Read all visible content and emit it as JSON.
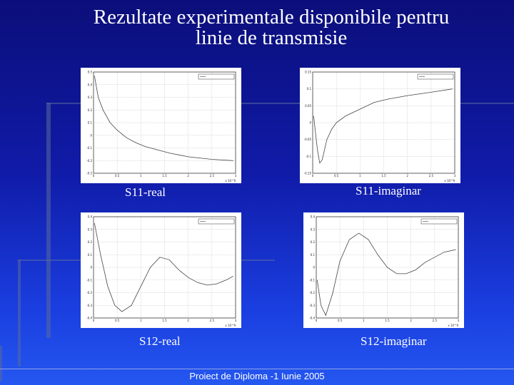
{
  "slide": {
    "title_line1": "Rezultate experimentale disponibile pentru",
    "title_line2": "linie de transmisie",
    "footer": "Proiect de Diploma -1 Iunie 2005"
  },
  "captions": {
    "s11_real": "S11-real",
    "s11_imag": "S11-imaginar",
    "s12_real": "S12-real",
    "s12_imag": "S12-imaginar"
  },
  "chart_data": [
    {
      "id": "s11_real",
      "type": "line",
      "x_ticks": [
        "0",
        "0.5",
        "1",
        "1.5",
        "2",
        "2.5",
        "3"
      ],
      "y_ticks": [
        "0.5",
        "0.4",
        "0.3",
        "0.2",
        "0.1",
        "0",
        "-0.1",
        "-0.2",
        "-0.3"
      ],
      "x_exponent": "x 10^9",
      "ylim": [
        -0.3,
        0.5
      ],
      "xlim": [
        0,
        3
      ],
      "grid": true,
      "legend_position": "top-right",
      "x": [
        0.02,
        0.1,
        0.2,
        0.35,
        0.5,
        0.7,
        0.9,
        1.1,
        1.3,
        1.6,
        2.0,
        2.5,
        2.95
      ],
      "values": [
        0.47,
        0.3,
        0.2,
        0.1,
        0.04,
        -0.02,
        -0.06,
        -0.09,
        -0.11,
        -0.14,
        -0.17,
        -0.19,
        -0.2
      ]
    },
    {
      "id": "s11_imag",
      "type": "line",
      "x_ticks": [
        "0",
        "0.5",
        "1",
        "1.5",
        "2",
        "2.5",
        "3"
      ],
      "y_ticks": [
        "0.15",
        "0.1",
        "0.05",
        "0",
        "-0.05",
        "-0.1",
        "-0.15"
      ],
      "x_exponent": "x 10^9",
      "ylim": [
        -0.15,
        0.15
      ],
      "xlim": [
        0,
        3
      ],
      "grid": true,
      "legend_position": "top-right",
      "x": [
        0.02,
        0.1,
        0.15,
        0.2,
        0.3,
        0.4,
        0.5,
        0.7,
        1.0,
        1.3,
        1.6,
        2.0,
        2.5,
        2.95
      ],
      "values": [
        0.02,
        -0.08,
        -0.12,
        -0.11,
        -0.05,
        -0.02,
        0.0,
        0.02,
        0.04,
        0.06,
        0.07,
        0.08,
        0.09,
        0.1
      ]
    },
    {
      "id": "s12_real",
      "type": "line",
      "x_ticks": [
        "0",
        "0.5",
        "1",
        "1.5",
        "2",
        "2.5",
        "3"
      ],
      "y_ticks": [
        "0.4",
        "0.3",
        "0.2",
        "0.1",
        "0",
        "-0.1",
        "-0.2",
        "-0.3",
        "-0.4"
      ],
      "x_exponent": "x 10^9",
      "ylim": [
        -0.4,
        0.4
      ],
      "xlim": [
        0,
        3
      ],
      "grid": true,
      "legend_position": "top-right",
      "x": [
        0.02,
        0.15,
        0.3,
        0.45,
        0.6,
        0.8,
        1.0,
        1.2,
        1.4,
        1.6,
        1.8,
        2.0,
        2.2,
        2.4,
        2.6,
        2.8,
        2.95
      ],
      "values": [
        0.35,
        0.1,
        -0.15,
        -0.3,
        -0.35,
        -0.3,
        -0.15,
        0.0,
        0.08,
        0.06,
        -0.02,
        -0.08,
        -0.12,
        -0.14,
        -0.13,
        -0.1,
        -0.07
      ]
    },
    {
      "id": "s12_imag",
      "type": "line",
      "x_ticks": [
        "0",
        "0.5",
        "1",
        "1.5",
        "2",
        "2.5",
        "3"
      ],
      "y_ticks": [
        "0.4",
        "0.3",
        "0.2",
        "0.1",
        "0",
        "-0.1",
        "-0.2",
        "-0.3",
        "-0.4"
      ],
      "x_exponent": "x 10^9",
      "ylim": [
        -0.4,
        0.4
      ],
      "xlim": [
        0,
        3
      ],
      "grid": true,
      "legend_position": "top-right",
      "x": [
        0.02,
        0.1,
        0.2,
        0.35,
        0.5,
        0.7,
        0.9,
        1.1,
        1.3,
        1.5,
        1.7,
        1.9,
        2.1,
        2.3,
        2.5,
        2.7,
        2.95
      ],
      "values": [
        -0.1,
        -0.3,
        -0.38,
        -0.2,
        0.05,
        0.22,
        0.27,
        0.22,
        0.1,
        0.0,
        -0.05,
        -0.05,
        -0.02,
        0.04,
        0.08,
        0.12,
        0.14
      ]
    }
  ],
  "colors": {
    "line": "#444444",
    "grid": "#bbbbbb",
    "frame": "#000000"
  }
}
